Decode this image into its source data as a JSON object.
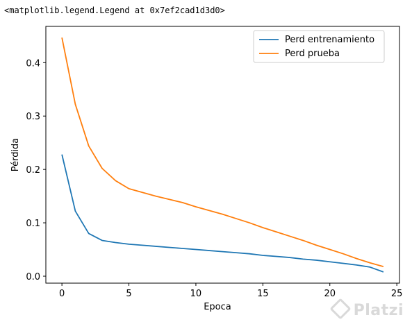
{
  "output": {
    "repr_text": "<matplotlib.legend.Legend at 0x7ef2cad1d3d0>"
  },
  "watermark": {
    "text": "Platzi"
  },
  "chart_data": {
    "type": "line",
    "title": "",
    "xlabel": "Epoca",
    "ylabel": "Pérdida",
    "xlim": [
      -1.2,
      25.2
    ],
    "ylim": [
      -0.013,
      0.468
    ],
    "x_ticks": [
      0,
      5,
      10,
      15,
      20,
      25
    ],
    "y_ticks": [
      0.0,
      0.1,
      0.2,
      0.3,
      0.4
    ],
    "y_tick_labels": [
      "0.0",
      "0.1",
      "0.2",
      "0.3",
      "0.4"
    ],
    "grid": false,
    "legend_position": "top-right",
    "x": [
      0,
      1,
      2,
      3,
      4,
      5,
      6,
      7,
      8,
      9,
      10,
      11,
      12,
      13,
      14,
      15,
      16,
      17,
      18,
      19,
      20,
      21,
      22,
      23,
      24
    ],
    "series": [
      {
        "name": "Perd entrenamiento",
        "color": "#1f77b4",
        "values": [
          0.228,
          0.122,
          0.08,
          0.067,
          0.063,
          0.06,
          0.058,
          0.056,
          0.054,
          0.052,
          0.05,
          0.048,
          0.046,
          0.044,
          0.042,
          0.039,
          0.037,
          0.035,
          0.032,
          0.03,
          0.027,
          0.024,
          0.021,
          0.017,
          0.008
        ]
      },
      {
        "name": "Perd prueba",
        "color": "#ff7f0e",
        "values": [
          0.447,
          0.322,
          0.244,
          0.202,
          0.179,
          0.164,
          0.157,
          0.15,
          0.144,
          0.138,
          0.13,
          0.123,
          0.116,
          0.108,
          0.1,
          0.091,
          0.083,
          0.075,
          0.067,
          0.058,
          0.05,
          0.042,
          0.033,
          0.025,
          0.018
        ]
      }
    ]
  }
}
